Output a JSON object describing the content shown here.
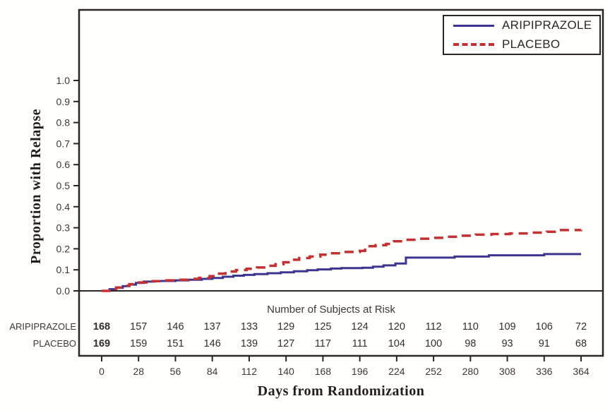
{
  "chart_data": {
    "type": "line",
    "subtype": "kaplan-meier-step",
    "title": "",
    "xlabel": "Days from Randomization",
    "ylabel": "Proportion with Relapse",
    "xlim": [
      0,
      364
    ],
    "ylim": [
      0.0,
      1.0
    ],
    "grid": false,
    "legend_position": "top-right-boxed",
    "xticks": [
      "0",
      "28",
      "56",
      "84",
      "112",
      "140",
      "168",
      "196",
      "224",
      "252",
      "280",
      "308",
      "336",
      "364"
    ],
    "yticks": [
      "1.0",
      "0.9",
      "0.8",
      "0.7",
      "0.6",
      "0.5",
      "0.4",
      "0.3",
      "0.2",
      "0.1",
      "0.0"
    ],
    "series": [
      {
        "name": "ARIPIPRAZOLE",
        "color": "#3d3691",
        "dash": "solid",
        "points": [
          [
            0,
            0
          ],
          [
            6,
            0.008
          ],
          [
            11,
            0.014
          ],
          [
            16,
            0.022
          ],
          [
            21,
            0.03
          ],
          [
            26,
            0.038
          ],
          [
            32,
            0.044
          ],
          [
            40,
            0.047
          ],
          [
            56,
            0.05
          ],
          [
            66,
            0.053
          ],
          [
            76,
            0.057
          ],
          [
            84,
            0.061
          ],
          [
            92,
            0.067
          ],
          [
            100,
            0.072
          ],
          [
            108,
            0.076
          ],
          [
            116,
            0.08
          ],
          [
            126,
            0.084
          ],
          [
            136,
            0.088
          ],
          [
            146,
            0.093
          ],
          [
            156,
            0.098
          ],
          [
            164,
            0.102
          ],
          [
            174,
            0.106
          ],
          [
            182,
            0.108
          ],
          [
            198,
            0.11
          ],
          [
            206,
            0.115
          ],
          [
            214,
            0.121
          ],
          [
            223,
            0.13
          ],
          [
            231,
            0.158
          ],
          [
            268,
            0.163
          ],
          [
            294,
            0.169
          ],
          [
            336,
            0.175
          ],
          [
            364,
            0.175
          ]
        ]
      },
      {
        "name": "PLACEBO",
        "color": "#c23234",
        "dash": "dashed",
        "points": [
          [
            0,
            0
          ],
          [
            6,
            0.009
          ],
          [
            11,
            0.016
          ],
          [
            16,
            0.024
          ],
          [
            21,
            0.032
          ],
          [
            27,
            0.04
          ],
          [
            34,
            0.046
          ],
          [
            46,
            0.05
          ],
          [
            58,
            0.053
          ],
          [
            66,
            0.057
          ],
          [
            74,
            0.062
          ],
          [
            82,
            0.07
          ],
          [
            88,
            0.082
          ],
          [
            94,
            0.092
          ],
          [
            102,
            0.099
          ],
          [
            110,
            0.105
          ],
          [
            118,
            0.111
          ],
          [
            126,
            0.119
          ],
          [
            132,
            0.127
          ],
          [
            138,
            0.136
          ],
          [
            144,
            0.148
          ],
          [
            150,
            0.156
          ],
          [
            158,
            0.163
          ],
          [
            166,
            0.172
          ],
          [
            174,
            0.179
          ],
          [
            182,
            0.185
          ],
          [
            196,
            0.19
          ],
          [
            200,
            0.212
          ],
          [
            208,
            0.217
          ],
          [
            216,
            0.223
          ],
          [
            222,
            0.236
          ],
          [
            230,
            0.243
          ],
          [
            240,
            0.248
          ],
          [
            250,
            0.252
          ],
          [
            260,
            0.257
          ],
          [
            272,
            0.262
          ],
          [
            284,
            0.267
          ],
          [
            296,
            0.27
          ],
          [
            310,
            0.273
          ],
          [
            324,
            0.277
          ],
          [
            338,
            0.281
          ],
          [
            344,
            0.289
          ],
          [
            364,
            0.29
          ]
        ]
      }
    ],
    "risk_table": {
      "title": "Number of Subjects at Risk",
      "days": [
        0,
        28,
        56,
        84,
        112,
        140,
        168,
        196,
        224,
        252,
        280,
        308,
        336,
        364
      ],
      "rows": [
        {
          "label": "ARIPIPRAZOLE",
          "counts": [
            "168",
            "157",
            "146",
            "137",
            "133",
            "129",
            "125",
            "124",
            "120",
            "112",
            "110",
            "109",
            "106",
            "72"
          ]
        },
        {
          "label": "PLACEBO",
          "counts": [
            "169",
            "159",
            "151",
            "146",
            "139",
            "127",
            "117",
            "111",
            "104",
            "100",
            "98",
            "93",
            "91",
            "68"
          ]
        }
      ]
    },
    "colors": {
      "frame": "#2b2523",
      "tick_text": "#3e3737",
      "risk_text": "#332d2c",
      "axis_title": "#231d1c"
    }
  }
}
